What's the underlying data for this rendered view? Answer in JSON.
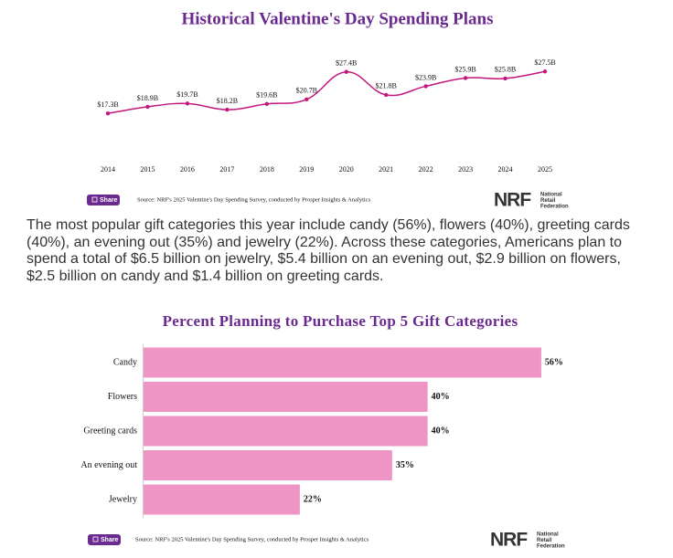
{
  "chart_data": [
    {
      "type": "line",
      "title": "Historical Valentine's Day Spending Plans",
      "categories": [
        "2014",
        "2015",
        "2016",
        "2017",
        "2018",
        "2019",
        "2020",
        "2021",
        "2022",
        "2023",
        "2024",
        "2025"
      ],
      "values": [
        17.3,
        18.9,
        19.7,
        18.2,
        19.6,
        20.7,
        27.4,
        21.8,
        23.9,
        25.9,
        25.8,
        27.5
      ],
      "value_labels": [
        "$17.3B",
        "$18.9B",
        "$19.7B",
        "$18.2B",
        "$19.6B",
        "$20.7B",
        "$27.4B",
        "$21.8B",
        "$23.9B",
        "$25.9B",
        "$25.8B",
        "$27.5B"
      ],
      "color": "#c3177e",
      "ylim": [
        10,
        30
      ],
      "grid": false
    },
    {
      "type": "hbar",
      "title": "Percent Planning to Purchase Top 5 Gift Categories",
      "categories": [
        "Candy",
        "Flowers",
        "Greeting cards",
        "An evening out",
        "Jewelry"
      ],
      "values": [
        56,
        40,
        40,
        35,
        22
      ],
      "value_labels": [
        "56%",
        "40%",
        "40%",
        "35%",
        "22%"
      ],
      "color": "#ee95c5",
      "xlim": [
        0,
        60
      ],
      "grid": false
    }
  ],
  "paragraph": "The most popular gift categories this year include candy (56%), flowers (40%), greeting cards (40%), an evening out (35%) and jewelry (22%). Across these categories, Americans plan to spend a total of $6.5 billion on jewelry, $5.4 billion on an evening out, $2.9 billion on flowers, $2.5 billion on candy and $1.4 billion on greeting cards.",
  "footers": [
    {
      "share": "Share",
      "source": "Source: NRF's 2025 Valentine's Day Spending Survey, conducted by Prosper Insights & Analytics",
      "logo": "NRF",
      "logo_caption": [
        "National",
        "Retail",
        "Federation"
      ]
    },
    {
      "share": "Share",
      "source": "Source: NRF's 2025 Valentine's Day Spending Survey, conducted by Prosper Insights & Analytics",
      "logo": "NRF",
      "logo_caption": [
        "National",
        "Retail",
        "Federation"
      ]
    }
  ]
}
